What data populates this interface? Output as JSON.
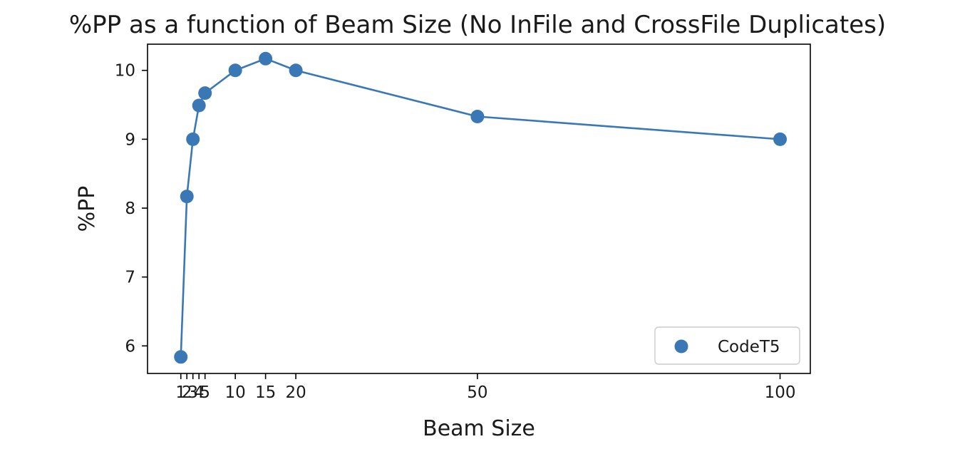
{
  "chart_data": {
    "type": "line",
    "title": "%PP as a function of Beam Size (No InFile and CrossFile Duplicates)",
    "xlabel": "Beam Size",
    "ylabel": "%PP",
    "xlim": [
      -4.5,
      105
    ],
    "ylim": [
      5.6,
      10.38
    ],
    "xticks": [
      1,
      2,
      3,
      4,
      5,
      10,
      15,
      20,
      50,
      100
    ],
    "xtick_labels": [
      "1",
      "2",
      "3",
      "4",
      "5",
      "10",
      "15",
      "20",
      "50",
      "100"
    ],
    "yticks": [
      6,
      7,
      8,
      9,
      10
    ],
    "ytick_labels": [
      "6",
      "7",
      "8",
      "9",
      "10"
    ],
    "grid": false,
    "legend": {
      "position": "lower-right",
      "entries": [
        "CodeT5"
      ]
    },
    "series": [
      {
        "name": "CodeT5",
        "color": "#3a78b5",
        "x": [
          1,
          2,
          3,
          4,
          5,
          10,
          15,
          20,
          50,
          100
        ],
        "y": [
          5.84,
          8.17,
          9.0,
          9.49,
          9.67,
          10.0,
          10.17,
          10.0,
          9.33,
          9.0
        ]
      }
    ]
  }
}
